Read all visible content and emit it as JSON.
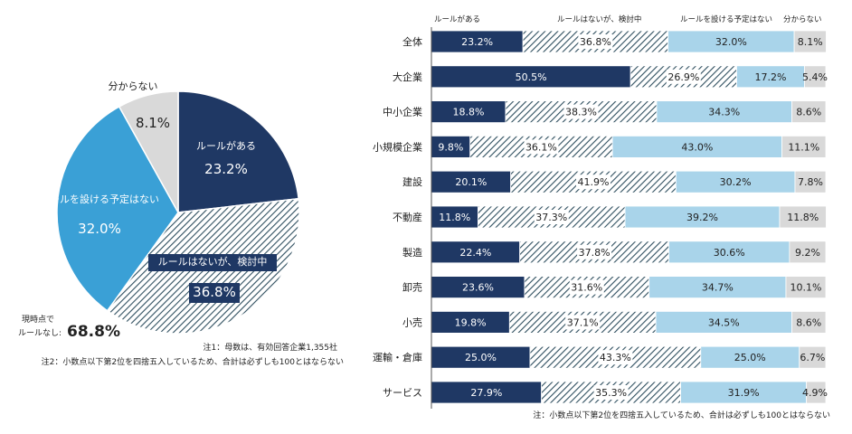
{
  "colors": {
    "has_rule": "#1f3864",
    "planned_hatch_bg": "#ffffff",
    "planned_hatch_line": "#2f4f5f",
    "no_plan": "#a9d4ea",
    "unknown": "#d9d9d9",
    "pie_no_plan": "#3aa0d6"
  },
  "chart_data": [
    {
      "type": "pie",
      "slices": [
        {
          "name": "ルールがある",
          "value": 23.2,
          "value_label": "23.2%"
        },
        {
          "name": "ルールはないが、検討中",
          "value": 36.8,
          "value_label": "36.8%"
        },
        {
          "name": "ルールを設ける予定はない",
          "value": 32.0,
          "value_label": "32.0%"
        },
        {
          "name": "分からない",
          "value": 8.1,
          "value_label": "8.1%"
        }
      ],
      "summary_label": "現時点で\nルールなし:",
      "summary_value": "68.8%",
      "notes": [
        "注1：母数は、有効回答企業1,355社",
        "注2：小数点以下第2位を四捨五入しているため、合計は必ずしも100とはならない"
      ]
    },
    {
      "type": "bar",
      "orientation": "horizontal",
      "stacked": true,
      "legend_position": "top",
      "categories": [
        "全体",
        "大企業",
        "中小企業",
        "小規模企業",
        "建設",
        "不動産",
        "製造",
        "卸売",
        "小売",
        "運輸・倉庫",
        "サービス"
      ],
      "series": [
        {
          "name": "ルールがある",
          "values": [
            23.2,
            50.5,
            18.8,
            9.8,
            20.1,
            11.8,
            22.4,
            23.6,
            19.8,
            25.0,
            27.9
          ]
        },
        {
          "name": "ルールはないが、検討中",
          "values": [
            36.8,
            26.9,
            38.3,
            36.1,
            41.9,
            37.3,
            37.8,
            31.6,
            37.1,
            43.3,
            35.3
          ]
        },
        {
          "name": "ルールを設ける予定はない",
          "values": [
            32.0,
            17.2,
            34.3,
            43.0,
            30.2,
            39.2,
            30.6,
            34.7,
            34.5,
            25.0,
            31.9
          ]
        },
        {
          "name": "分からない",
          "values": [
            8.1,
            5.4,
            8.6,
            11.1,
            7.8,
            11.8,
            9.2,
            10.1,
            8.6,
            6.7,
            4.9
          ]
        }
      ],
      "xlim": [
        0,
        100
      ],
      "note": "注：小数点以下第2位を四捨五入しているため、合計は必ずしも100とはならない"
    }
  ]
}
